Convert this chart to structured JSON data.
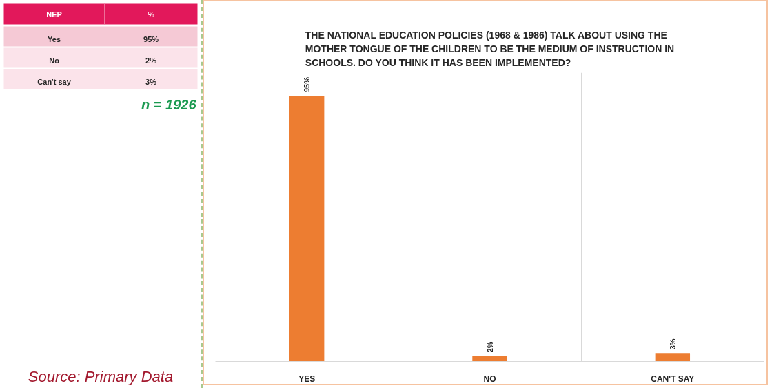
{
  "chart_data": [
    {
      "type": "other",
      "xlabel": "NEP",
      "ylabel": "%",
      "categories": [
        "Yes",
        "No",
        "Can't say"
      ],
      "values": [
        95,
        2,
        3
      ],
      "value_labels": [
        "95%",
        "2%",
        "3%"
      ],
      "annotations": [
        "n = 1926",
        "Source: Primary Data"
      ]
    },
    {
      "type": "bar",
      "title": "THE NATIONAL EDUCATION POLICIES (1968 & 1986) TALK ABOUT USING THE MOTHER TONGUE OF THE CHILDREN TO BE THE MEDIUM OF INSTRUCTION IN SCHOOLS. DO YOU THINK IT HAS BEEN IMPLEMENTED?",
      "categories": [
        "YES",
        "NO",
        "CAN'T SAY"
      ],
      "values": [
        95,
        2,
        3
      ],
      "value_labels": [
        "95%",
        "2%",
        "3%"
      ],
      "color": "#ed7d31",
      "grid": "x"
    }
  ]
}
